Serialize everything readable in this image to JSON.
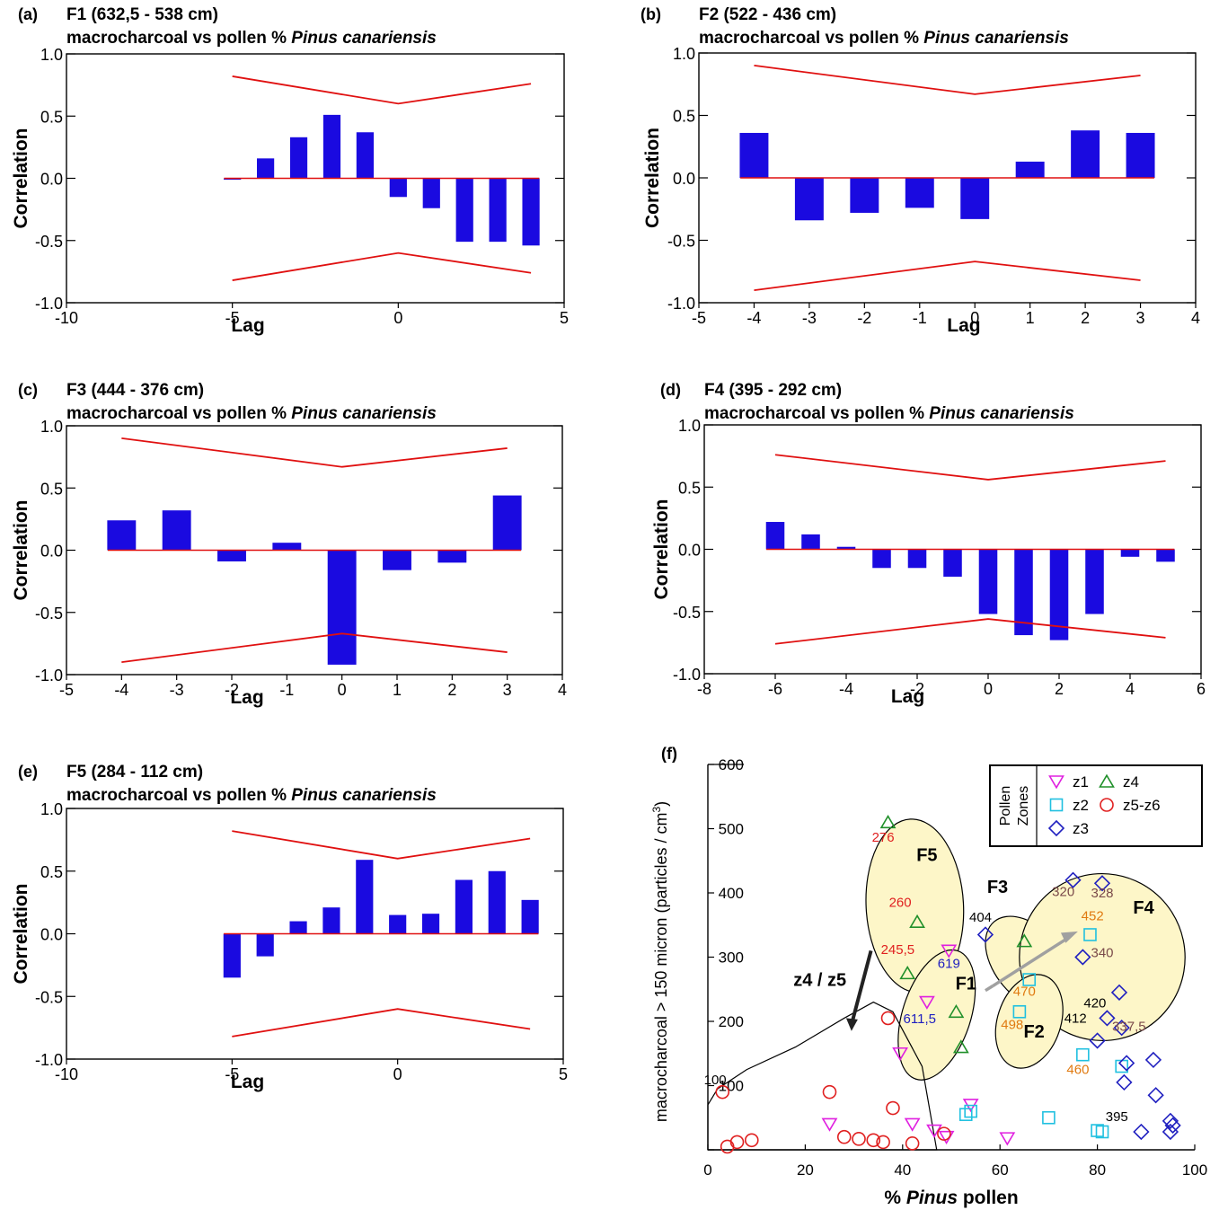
{
  "colors": {
    "bar": "#1a0ae0",
    "ci": "#e01010",
    "axis": "#000000",
    "z1": "#e020e0",
    "z2": "#20c0e0",
    "z3": "#2020c0",
    "z4": "#20902a",
    "z56": "#e02020",
    "zone_fill": "#fdf6c8",
    "arrow_gray": "#a0a0a0"
  },
  "chart_data": [
    {
      "id": "a",
      "panel_label": "(a)",
      "type": "bar",
      "title_line1": "F1 (632,5 - 538 cm)",
      "title_line2_prefix": "macrocharcoal vs pollen % ",
      "title_line2_italic": "Pinus canariensis",
      "xlabel": "Lag",
      "ylabel": "Correlation",
      "xlim": [
        -10,
        5
      ],
      "ylim": [
        -1.0,
        1.0
      ],
      "xticks": [
        -10,
        -5,
        0,
        5
      ],
      "yticks": [
        -1.0,
        -0.5,
        0.0,
        0.5,
        1.0
      ],
      "ytick_labels": [
        "-1.0",
        "-0.5",
        "0.0",
        "0.5",
        "1.0"
      ],
      "grid": false,
      "lags": [
        -5,
        -4,
        -3,
        -2,
        -1,
        0,
        1,
        2,
        3,
        4
      ],
      "values": [
        0.0,
        0.16,
        0.33,
        0.51,
        0.37,
        -0.15,
        -0.24,
        -0.51,
        -0.51,
        -0.54
      ],
      "ci_upper": [
        [
          -5,
          0.82
        ],
        [
          0,
          0.6
        ],
        [
          4,
          0.76
        ]
      ],
      "ci_lower": [
        [
          -5,
          -0.82
        ],
        [
          0,
          -0.6
        ],
        [
          4,
          -0.76
        ]
      ],
      "zero_line": [
        -5,
        4
      ]
    },
    {
      "id": "b",
      "panel_label": "(b)",
      "type": "bar",
      "title_line1": "F2 (522 - 436 cm)",
      "title_line2_prefix": "macrocharcoal vs pollen % ",
      "title_line2_italic": "Pinus canariensis",
      "xlabel": "Lag",
      "ylabel": "Correlation",
      "xlim": [
        -5,
        4
      ],
      "ylim": [
        -1.0,
        1.0
      ],
      "xticks": [
        -5,
        -4,
        -3,
        -2,
        -1,
        0,
        1,
        2,
        3,
        4
      ],
      "yticks": [
        -1.0,
        -0.5,
        0.0,
        0.5,
        1.0
      ],
      "ytick_labels": [
        "-1.0",
        "-0.5",
        "0.0",
        "0.5",
        "1.0"
      ],
      "grid": false,
      "lags": [
        -4,
        -3,
        -2,
        -1,
        0,
        1,
        2,
        3
      ],
      "values": [
        0.36,
        -0.34,
        -0.28,
        -0.24,
        -0.33,
        0.13,
        0.38,
        0.36
      ],
      "ci_upper": [
        [
          -4,
          0.9
        ],
        [
          0,
          0.67
        ],
        [
          3,
          0.82
        ]
      ],
      "ci_lower": [
        [
          -4,
          -0.9
        ],
        [
          0,
          -0.67
        ],
        [
          3,
          -0.82
        ]
      ],
      "zero_line": [
        -4,
        3
      ]
    },
    {
      "id": "c",
      "panel_label": "(c)",
      "type": "bar",
      "title_line1": "F3 (444 - 376 cm)",
      "title_line2_prefix": "macrocharcoal vs pollen % ",
      "title_line2_italic": "Pinus canariensis",
      "xlabel": "Lag",
      "ylabel": "Correlation",
      "xlim": [
        -5,
        4
      ],
      "ylim": [
        -1.0,
        1.0
      ],
      "xticks": [
        -5,
        -4,
        -3,
        -2,
        -1,
        0,
        1,
        2,
        3,
        4
      ],
      "yticks": [
        -1.0,
        -0.5,
        0.0,
        0.5,
        1.0
      ],
      "ytick_labels": [
        "-1.0",
        "-0.5",
        "0.0",
        "0.5",
        "1.0"
      ],
      "grid": false,
      "lags": [
        -4,
        -3,
        -2,
        -1,
        0,
        1,
        2,
        3
      ],
      "values": [
        0.24,
        0.32,
        -0.09,
        0.06,
        -0.92,
        -0.16,
        -0.1,
        0.44
      ],
      "ci_upper": [
        [
          -4,
          0.9
        ],
        [
          0,
          0.67
        ],
        [
          3,
          0.82
        ]
      ],
      "ci_lower": [
        [
          -4,
          -0.9
        ],
        [
          0,
          -0.67
        ],
        [
          3,
          -0.82
        ]
      ],
      "zero_line": [
        -4,
        3
      ]
    },
    {
      "id": "d",
      "panel_label": "(d)",
      "type": "bar",
      "title_line1": "F4 (395 - 292 cm)",
      "title_line2_prefix": "macrocharcoal vs pollen % ",
      "title_line2_italic": "Pinus canariensis",
      "xlabel": "Lag",
      "ylabel": "Correlation",
      "xlim": [
        -8,
        6
      ],
      "ylim": [
        -1.0,
        1.0
      ],
      "xticks": [
        -8,
        -6,
        -4,
        -2,
        0,
        2,
        4,
        6
      ],
      "yticks": [
        -1.0,
        -0.5,
        0.0,
        0.5,
        1.0
      ],
      "ytick_labels": [
        "-1.0",
        "-0.5",
        "0.0",
        "0.5",
        "1.0"
      ],
      "grid": false,
      "lags": [
        -6,
        -5,
        -4,
        -3,
        -2,
        -1,
        0,
        1,
        2,
        3,
        4,
        5
      ],
      "values": [
        0.22,
        0.12,
        0.02,
        -0.15,
        -0.15,
        -0.22,
        -0.52,
        -0.69,
        -0.73,
        -0.52,
        -0.06,
        -0.1
      ],
      "ci_upper": [
        [
          -6,
          0.76
        ],
        [
          0,
          0.56
        ],
        [
          5,
          0.71
        ]
      ],
      "ci_lower": [
        [
          -6,
          -0.76
        ],
        [
          0,
          -0.56
        ],
        [
          5,
          -0.71
        ]
      ],
      "zero_line": [
        -6,
        5
      ]
    },
    {
      "id": "e",
      "panel_label": "(e)",
      "type": "bar",
      "title_line1": "F5 (284 - 112 cm)",
      "title_line2_prefix": "macrocharcoal vs pollen % ",
      "title_line2_italic": "Pinus canariensis",
      "xlabel": "Lag",
      "ylabel": "Correlation",
      "xlim": [
        -10,
        5
      ],
      "ylim": [
        -1.0,
        1.0
      ],
      "xticks": [
        -10,
        -5,
        0,
        5
      ],
      "yticks": [
        -1.0,
        -0.5,
        0.0,
        0.5,
        1.0
      ],
      "ytick_labels": [
        "-1.0",
        "-0.5",
        "0.0",
        "0.5",
        "1.0"
      ],
      "grid": false,
      "lags": [
        -5,
        -4,
        -3,
        -2,
        -1,
        0,
        1,
        2,
        3,
        4
      ],
      "values": [
        -0.35,
        -0.18,
        0.1,
        0.21,
        0.59,
        0.15,
        0.16,
        0.43,
        0.5,
        0.27
      ],
      "ci_upper": [
        [
          -5,
          0.82
        ],
        [
          0,
          0.6
        ],
        [
          4,
          0.76
        ]
      ],
      "ci_lower": [
        [
          -5,
          -0.82
        ],
        [
          0,
          -0.6
        ],
        [
          4,
          -0.76
        ]
      ],
      "zero_line": [
        -5,
        4
      ]
    },
    {
      "id": "f",
      "panel_label": "(f)",
      "type": "scatter",
      "xlabel_prefix": "% ",
      "xlabel_italic": "Pinus",
      "xlabel_suffix": " pollen",
      "ylabel": "macrocharcoal > 150 micron (particles / cm",
      "ylabel_sup": "3",
      "ylabel_close": ")",
      "xlim": [
        0,
        100
      ],
      "ylim": [
        0,
        600
      ],
      "xticks": [
        0,
        20,
        40,
        60,
        80,
        100
      ],
      "yticks": [
        0,
        100,
        200,
        300,
        400,
        500,
        600
      ],
      "ytick_labels": [
        "",
        "100",
        "200",
        "300",
        "400",
        "500",
        "600"
      ],
      "grid": false,
      "legend": {
        "title_line1": "Pollen",
        "title_line2": "Zones",
        "placement": "top-right",
        "entries": [
          {
            "name": "z1",
            "marker": "triangle-down",
            "color_key": "z1"
          },
          {
            "name": "z4",
            "marker": "triangle-up",
            "color_key": "z4"
          },
          {
            "name": "z2",
            "marker": "square",
            "color_key": "z2"
          },
          {
            "name": "z5-z6",
            "marker": "circle",
            "color_key": "z56"
          },
          {
            "name": "z3",
            "marker": "diamond",
            "color_key": "z3"
          }
        ]
      },
      "series": [
        {
          "name": "z1",
          "marker": "triangle-down",
          "color_key": "z1",
          "points": [
            [
              39.5,
              150
            ],
            [
              45,
              230
            ],
            [
              49.5,
              310
            ],
            [
              42,
              40
            ],
            [
              46.5,
              30
            ],
            [
              49,
              20
            ],
            [
              54,
              70
            ],
            [
              25,
              40
            ],
            [
              61.5,
              18
            ]
          ]
        },
        {
          "name": "z4",
          "marker": "triangle-up",
          "color_key": "z4",
          "points": [
            [
              37,
              510
            ],
            [
              43,
              355
            ],
            [
              41,
              275
            ],
            [
              51,
              215
            ],
            [
              52,
              160
            ],
            [
              65,
              325
            ]
          ]
        },
        {
          "name": "z2",
          "marker": "square",
          "color_key": "z2",
          "points": [
            [
              78.5,
              335
            ],
            [
              66,
              265
            ],
            [
              64,
              215
            ],
            [
              77,
              148
            ],
            [
              85,
              130
            ],
            [
              70,
              50
            ],
            [
              54,
              60
            ],
            [
              53,
              55
            ],
            [
              80,
              30
            ],
            [
              81,
              28
            ]
          ]
        },
        {
          "name": "z5-z6",
          "marker": "circle",
          "color_key": "z56",
          "points": [
            [
              37,
              205
            ],
            [
              3,
              90
            ],
            [
              25,
              90
            ],
            [
              38,
              65
            ],
            [
              4,
              5
            ],
            [
              6,
              12
            ],
            [
              9,
              15
            ],
            [
              28,
              20
            ],
            [
              31,
              17
            ],
            [
              34,
              15
            ],
            [
              36,
              12
            ],
            [
              42,
              10
            ],
            [
              48.5,
              25
            ]
          ]
        },
        {
          "name": "z3",
          "marker": "diamond",
          "color_key": "z3",
          "points": [
            [
              57,
              335
            ],
            [
              75,
              420
            ],
            [
              81,
              415
            ],
            [
              77,
              300
            ],
            [
              84.5,
              245
            ],
            [
              82,
              205
            ],
            [
              80,
              170
            ],
            [
              85,
              190
            ],
            [
              86,
              135
            ],
            [
              85.5,
              105
            ],
            [
              91.5,
              140
            ],
            [
              92,
              85
            ],
            [
              95,
              45
            ],
            [
              95.5,
              38
            ],
            [
              89,
              28
            ],
            [
              95,
              28
            ]
          ]
        }
      ],
      "annotations": [
        {
          "text": "276",
          "x": 36,
          "y": 480,
          "color": "#e02020"
        },
        {
          "text": "260",
          "x": 39.5,
          "y": 378,
          "color": "#e02020"
        },
        {
          "text": "245,5",
          "x": 39,
          "y": 305,
          "color": "#e02020"
        },
        {
          "text": "619",
          "x": 49.5,
          "y": 283,
          "color": "#2020c0"
        },
        {
          "text": "611,5",
          "x": 43.5,
          "y": 197,
          "color": "#2020c0"
        },
        {
          "text": "404",
          "x": 56,
          "y": 355,
          "color": "#000000"
        },
        {
          "text": "320",
          "x": 73,
          "y": 395,
          "color": "#7a4a4a"
        },
        {
          "text": "328",
          "x": 81,
          "y": 393,
          "color": "#7a4a4a"
        },
        {
          "text": "452",
          "x": 79,
          "y": 357,
          "color": "#e07a10"
        },
        {
          "text": "340",
          "x": 81,
          "y": 300,
          "color": "#7a4a4a"
        },
        {
          "text": "470",
          "x": 65,
          "y": 240,
          "color": "#e07a10"
        },
        {
          "text": "498",
          "x": 62.5,
          "y": 188,
          "color": "#e07a10"
        },
        {
          "text": "420",
          "x": 79.5,
          "y": 222,
          "color": "#000000"
        },
        {
          "text": "412",
          "x": 75.5,
          "y": 198,
          "color": "#000000"
        },
        {
          "text": "337,5",
          "x": 86.5,
          "y": 185,
          "color": "#7a4a4a"
        },
        {
          "text": "460",
          "x": 76,
          "y": 118,
          "color": "#e07a10"
        },
        {
          "text": "395",
          "x": 84,
          "y": 45,
          "color": "#000000"
        },
        {
          "text": "100",
          "x": 1.5,
          "y": 102,
          "color": "#000000"
        }
      ],
      "zones": [
        {
          "label": "F5",
          "label_x": 45,
          "label_y": 450,
          "cx": 42.5,
          "cy": 380,
          "rx": 10,
          "ry": 135,
          "rot": -3
        },
        {
          "label": "F3",
          "label_x": 59.5,
          "label_y": 400,
          "cx": 66,
          "cy": 290,
          "rx": 7,
          "ry": 85,
          "rot": -40
        },
        {
          "label": "F4",
          "label_x": 89.5,
          "label_y": 368,
          "cx": 81,
          "cy": 300,
          "rx": 17,
          "ry": 130,
          "rot": -12
        },
        {
          "label": "F1",
          "label_x": 53,
          "label_y": 250,
          "cx": 47,
          "cy": 210,
          "rx": 7,
          "ry": 105,
          "rot": 18
        },
        {
          "label": "F2",
          "label_x": 67,
          "label_y": 175,
          "cx": 66,
          "cy": 200,
          "rx": 6.5,
          "ry": 75,
          "rot": 18
        }
      ],
      "z45_label": "z4 / z5",
      "z45_label_x": 23,
      "z45_label_y": 255
    }
  ]
}
